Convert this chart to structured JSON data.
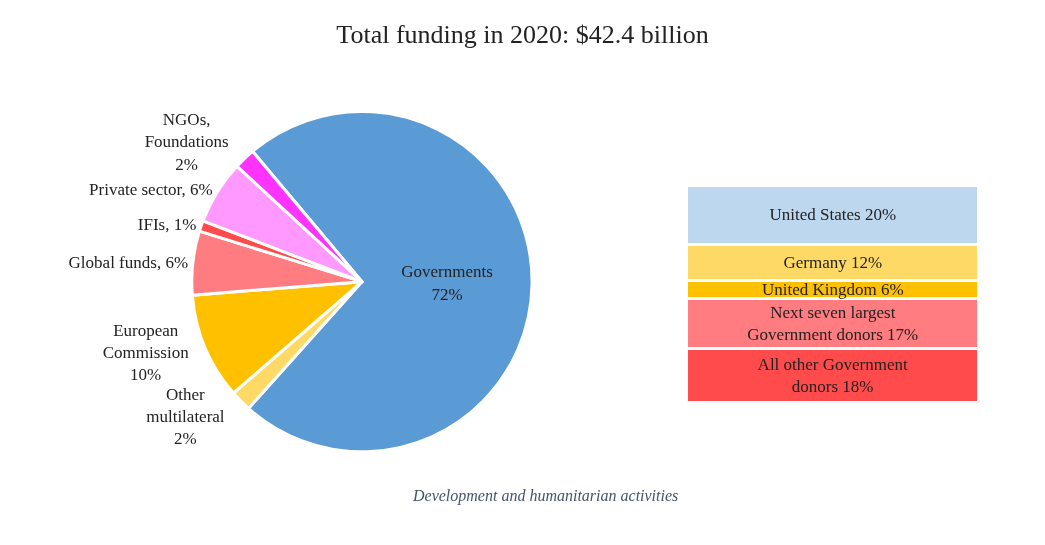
{
  "chart_data": [
    {
      "type": "pie",
      "title": "Total funding in 2020: $42.4 billion",
      "categories": [
        "Governments",
        "Other multilateral",
        "European Commission",
        "Global funds",
        "IFIs",
        "Private sector",
        "NGOs, Foundations"
      ],
      "values": [
        72,
        2,
        10,
        6,
        1,
        6,
        2
      ],
      "colors": [
        "#5b9bd5",
        "#ffd966",
        "#ffc000",
        "#ff7c80",
        "#ff4b4b",
        "#ff99ff",
        "#ff33ff"
      ],
      "value_labels": [
        "72%",
        "2%",
        "10%",
        "6%",
        "1%",
        "6%",
        "2%"
      ],
      "legend": false,
      "annotations": [
        "Development and humanitarian activities"
      ]
    },
    {
      "type": "bar",
      "stacked": true,
      "categories": [
        null
      ],
      "tick_labels": false,
      "legend": false,
      "series": [
        {
          "color": "#ff4b4b",
          "values": [
            18
          ],
          "value_labels": [
            "All other Government donors 18%"
          ]
        },
        {
          "color": "#ff7c80",
          "values": [
            17
          ],
          "value_labels": [
            "Next seven largest Government donors 17%"
          ]
        },
        {
          "color": "#ffc000",
          "values": [
            6
          ],
          "value_labels": [
            "United Kingdom 6%"
          ]
        },
        {
          "color": "#ffd966",
          "values": [
            12
          ],
          "value_labels": [
            "Germany 12%"
          ]
        },
        {
          "color": "#bdd7ee",
          "values": [
            20
          ],
          "value_labels": [
            "United States 20%"
          ]
        }
      ]
    }
  ]
}
